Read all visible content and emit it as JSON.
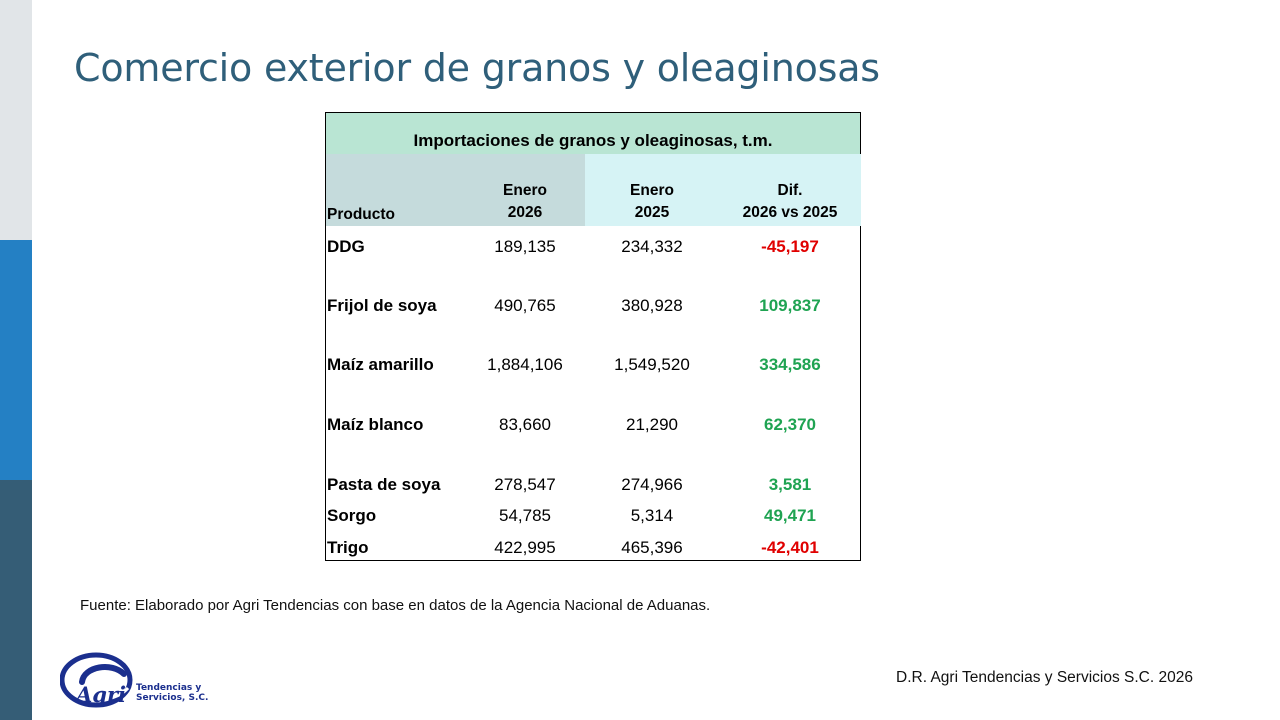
{
  "page": {
    "title": "Comercio exterior de granos y oleaginosas"
  },
  "table": {
    "title": "Importaciones de granos y oleaginosas, t.m.",
    "headers": {
      "producto": "Producto",
      "col_2026_line1": "Enero",
      "col_2026_line2": "2026",
      "col_2025_line1": "Enero",
      "col_2025_line2": "2025",
      "col_dif_line1": "Dif.",
      "col_dif_line2": "2026 vs 2025"
    },
    "rows": [
      {
        "producto": "DDG",
        "enero_2026": "189,135",
        "enero_2025": "234,332",
        "dif": "-45,197",
        "dif_color": "#e00000"
      },
      {
        "producto": "Frijol de soya",
        "enero_2026": "490,765",
        "enero_2025": "380,928",
        "dif": "109,837",
        "dif_color": "#1fa352"
      },
      {
        "producto": "Maíz amarillo",
        "enero_2026": "1,884,106",
        "enero_2025": "1,549,520",
        "dif": "334,586",
        "dif_color": "#1fa352"
      },
      {
        "producto": "Maíz blanco",
        "enero_2026": "83,660",
        "enero_2025": "21,290",
        "dif": "62,370",
        "dif_color": "#1fa352"
      },
      {
        "producto": "Pasta de soya",
        "enero_2026": "278,547",
        "enero_2025": "274,966",
        "dif": "3,581",
        "dif_color": "#1fa352"
      },
      {
        "producto": "Sorgo",
        "enero_2026": "54,785",
        "enero_2025": "5,314",
        "dif": "49,471",
        "dif_color": "#1fa352"
      },
      {
        "producto": "Trigo",
        "enero_2026": "422,995",
        "enero_2025": "465,396",
        "dif": "-42,401",
        "dif_color": "#e00000"
      }
    ]
  },
  "footnote": "Fuente: Elaborado por Agri Tendencias con base en datos de la Agencia Nacional de Aduanas.",
  "copyright": "D.R. Agri Tendencias y Servicios S.C. 2026",
  "logo": {
    "name": "Agri",
    "sub_line1": "Tendencias y",
    "sub_line2": "Servicios, S.C."
  },
  "colors": {
    "title": "#2f5f7a",
    "sidebar_top": "#e1e5e8",
    "sidebar_mid": "#2480c4",
    "sidebar_bottom": "#355d76",
    "negative": "#e00000",
    "positive": "#1fa352"
  }
}
